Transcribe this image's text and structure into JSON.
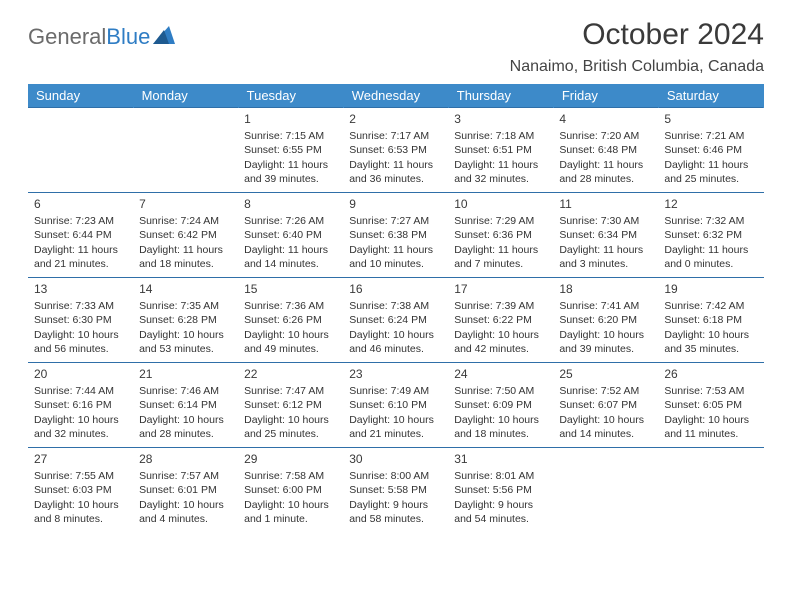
{
  "logo": {
    "text1": "General",
    "text2": "Blue"
  },
  "title": "October 2024",
  "location": "Nanaimo, British Columbia, Canada",
  "colors": {
    "header_bg": "#3d8ac9",
    "header_text": "#ffffff",
    "row_border": "#2f6fa8",
    "logo_gray": "#6b6b6b",
    "logo_blue": "#2f7dc4",
    "text": "#333333",
    "background": "#ffffff"
  },
  "day_headers": [
    "Sunday",
    "Monday",
    "Tuesday",
    "Wednesday",
    "Thursday",
    "Friday",
    "Saturday"
  ],
  "weeks": [
    [
      null,
      null,
      {
        "n": "1",
        "sr": "Sunrise: 7:15 AM",
        "ss": "Sunset: 6:55 PM",
        "dl": "Daylight: 11 hours and 39 minutes."
      },
      {
        "n": "2",
        "sr": "Sunrise: 7:17 AM",
        "ss": "Sunset: 6:53 PM",
        "dl": "Daylight: 11 hours and 36 minutes."
      },
      {
        "n": "3",
        "sr": "Sunrise: 7:18 AM",
        "ss": "Sunset: 6:51 PM",
        "dl": "Daylight: 11 hours and 32 minutes."
      },
      {
        "n": "4",
        "sr": "Sunrise: 7:20 AM",
        "ss": "Sunset: 6:48 PM",
        "dl": "Daylight: 11 hours and 28 minutes."
      },
      {
        "n": "5",
        "sr": "Sunrise: 7:21 AM",
        "ss": "Sunset: 6:46 PM",
        "dl": "Daylight: 11 hours and 25 minutes."
      }
    ],
    [
      {
        "n": "6",
        "sr": "Sunrise: 7:23 AM",
        "ss": "Sunset: 6:44 PM",
        "dl": "Daylight: 11 hours and 21 minutes."
      },
      {
        "n": "7",
        "sr": "Sunrise: 7:24 AM",
        "ss": "Sunset: 6:42 PM",
        "dl": "Daylight: 11 hours and 18 minutes."
      },
      {
        "n": "8",
        "sr": "Sunrise: 7:26 AM",
        "ss": "Sunset: 6:40 PM",
        "dl": "Daylight: 11 hours and 14 minutes."
      },
      {
        "n": "9",
        "sr": "Sunrise: 7:27 AM",
        "ss": "Sunset: 6:38 PM",
        "dl": "Daylight: 11 hours and 10 minutes."
      },
      {
        "n": "10",
        "sr": "Sunrise: 7:29 AM",
        "ss": "Sunset: 6:36 PM",
        "dl": "Daylight: 11 hours and 7 minutes."
      },
      {
        "n": "11",
        "sr": "Sunrise: 7:30 AM",
        "ss": "Sunset: 6:34 PM",
        "dl": "Daylight: 11 hours and 3 minutes."
      },
      {
        "n": "12",
        "sr": "Sunrise: 7:32 AM",
        "ss": "Sunset: 6:32 PM",
        "dl": "Daylight: 11 hours and 0 minutes."
      }
    ],
    [
      {
        "n": "13",
        "sr": "Sunrise: 7:33 AM",
        "ss": "Sunset: 6:30 PM",
        "dl": "Daylight: 10 hours and 56 minutes."
      },
      {
        "n": "14",
        "sr": "Sunrise: 7:35 AM",
        "ss": "Sunset: 6:28 PM",
        "dl": "Daylight: 10 hours and 53 minutes."
      },
      {
        "n": "15",
        "sr": "Sunrise: 7:36 AM",
        "ss": "Sunset: 6:26 PM",
        "dl": "Daylight: 10 hours and 49 minutes."
      },
      {
        "n": "16",
        "sr": "Sunrise: 7:38 AM",
        "ss": "Sunset: 6:24 PM",
        "dl": "Daylight: 10 hours and 46 minutes."
      },
      {
        "n": "17",
        "sr": "Sunrise: 7:39 AM",
        "ss": "Sunset: 6:22 PM",
        "dl": "Daylight: 10 hours and 42 minutes."
      },
      {
        "n": "18",
        "sr": "Sunrise: 7:41 AM",
        "ss": "Sunset: 6:20 PM",
        "dl": "Daylight: 10 hours and 39 minutes."
      },
      {
        "n": "19",
        "sr": "Sunrise: 7:42 AM",
        "ss": "Sunset: 6:18 PM",
        "dl": "Daylight: 10 hours and 35 minutes."
      }
    ],
    [
      {
        "n": "20",
        "sr": "Sunrise: 7:44 AM",
        "ss": "Sunset: 6:16 PM",
        "dl": "Daylight: 10 hours and 32 minutes."
      },
      {
        "n": "21",
        "sr": "Sunrise: 7:46 AM",
        "ss": "Sunset: 6:14 PM",
        "dl": "Daylight: 10 hours and 28 minutes."
      },
      {
        "n": "22",
        "sr": "Sunrise: 7:47 AM",
        "ss": "Sunset: 6:12 PM",
        "dl": "Daylight: 10 hours and 25 minutes."
      },
      {
        "n": "23",
        "sr": "Sunrise: 7:49 AM",
        "ss": "Sunset: 6:10 PM",
        "dl": "Daylight: 10 hours and 21 minutes."
      },
      {
        "n": "24",
        "sr": "Sunrise: 7:50 AM",
        "ss": "Sunset: 6:09 PM",
        "dl": "Daylight: 10 hours and 18 minutes."
      },
      {
        "n": "25",
        "sr": "Sunrise: 7:52 AM",
        "ss": "Sunset: 6:07 PM",
        "dl": "Daylight: 10 hours and 14 minutes."
      },
      {
        "n": "26",
        "sr": "Sunrise: 7:53 AM",
        "ss": "Sunset: 6:05 PM",
        "dl": "Daylight: 10 hours and 11 minutes."
      }
    ],
    [
      {
        "n": "27",
        "sr": "Sunrise: 7:55 AM",
        "ss": "Sunset: 6:03 PM",
        "dl": "Daylight: 10 hours and 8 minutes."
      },
      {
        "n": "28",
        "sr": "Sunrise: 7:57 AM",
        "ss": "Sunset: 6:01 PM",
        "dl": "Daylight: 10 hours and 4 minutes."
      },
      {
        "n": "29",
        "sr": "Sunrise: 7:58 AM",
        "ss": "Sunset: 6:00 PM",
        "dl": "Daylight: 10 hours and 1 minute."
      },
      {
        "n": "30",
        "sr": "Sunrise: 8:00 AM",
        "ss": "Sunset: 5:58 PM",
        "dl": "Daylight: 9 hours and 58 minutes."
      },
      {
        "n": "31",
        "sr": "Sunrise: 8:01 AM",
        "ss": "Sunset: 5:56 PM",
        "dl": "Daylight: 9 hours and 54 minutes."
      },
      null,
      null
    ]
  ]
}
